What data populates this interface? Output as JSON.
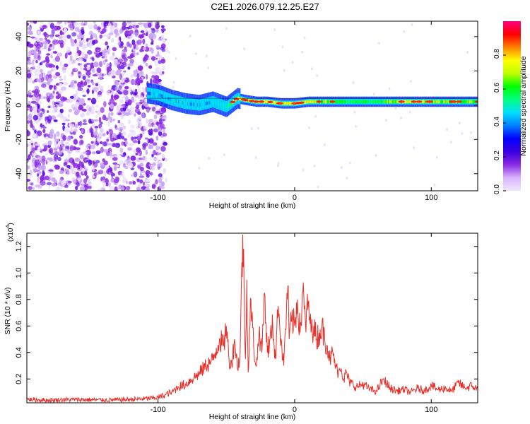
{
  "title": "C2E1.2026.079.12.25.E27",
  "chart_data": [
    {
      "type": "heatmap",
      "name": "spectrogram",
      "title": "C2E1.2026.079.12.25.E27",
      "xlabel": "Height of straight line (km)",
      "ylabel": "Frequency (Hz)",
      "xlim": [
        -196,
        134
      ],
      "ylim": [
        -50,
        49
      ],
      "xticks": [
        -100,
        0,
        100
      ],
      "xtick_labels": [
        "-100",
        "0",
        "100"
      ],
      "yticks": [
        -40,
        -20,
        0,
        20,
        40
      ],
      "ytick_labels": [
        "-40",
        "-20",
        "0",
        "20",
        "40"
      ],
      "colorbar": {
        "label": "Normalized spectral amplitude",
        "range": [
          0.0,
          1.0
        ],
        "ticks": [
          0.0,
          0.2,
          0.4,
          0.6,
          0.8
        ],
        "tick_labels": [
          "0.0",
          "0.2",
          "0.4",
          "0.6",
          "0.8"
        ],
        "colormap": [
          "#f0e6ff",
          "#d9b3ff",
          "#8a2be2",
          "#3a00e0",
          "#0000ff",
          "#0080ff",
          "#00e0ff",
          "#00ff80",
          "#00ff00",
          "#c0ff00",
          "#ffff00",
          "#ff8000",
          "#ff0000",
          "#ff0080"
        ]
      },
      "noise_region_x": [
        -196,
        -94
      ],
      "signal_track": {
        "x": [
          -108,
          -100,
          -90,
          -80,
          -70,
          -60,
          -50,
          -42,
          -36,
          -28,
          -20,
          -10,
          0,
          10,
          20,
          40,
          60,
          80,
          100,
          120,
          134
        ],
        "freq_hz": [
          7,
          6,
          3,
          1,
          0,
          2,
          -1,
          4,
          3,
          2,
          2,
          1,
          1,
          2,
          2,
          2,
          2,
          2,
          2,
          2,
          2
        ],
        "amplitude": [
          0.45,
          0.5,
          0.55,
          0.55,
          0.5,
          0.55,
          0.6,
          0.95,
          0.85,
          0.9,
          0.95,
          0.9,
          0.95,
          0.9,
          0.8,
          0.7,
          0.7,
          0.9,
          0.85,
          0.8,
          0.75
        ]
      }
    },
    {
      "type": "line",
      "name": "snr",
      "xlabel": "Height of straight line (km)",
      "ylabel": "SNR (10 * v/v)",
      "y_multiplier_label": "(x10",
      "y_multiplier_exponent": "4",
      "y_multiplier_close": ")",
      "xlim": [
        -196,
        134
      ],
      "ylim": [
        0.02,
        1.3
      ],
      "xticks": [
        -100,
        0,
        100
      ],
      "xtick_labels": [
        "-100",
        "0",
        "100"
      ],
      "yticks": [
        0.2,
        0.4,
        0.6,
        0.8,
        1.0,
        1.2
      ],
      "ytick_labels": [
        "0.2",
        "0.4",
        "0.6",
        "0.8",
        "1.0",
        "1.2"
      ],
      "color": "#e8302a",
      "series": [
        {
          "name": "SNR",
          "x": [
            -196,
            -180,
            -160,
            -140,
            -120,
            -110,
            -100,
            -95,
            -90,
            -85,
            -80,
            -75,
            -70,
            -65,
            -60,
            -58,
            -55,
            -52,
            -50,
            -48,
            -46,
            -44,
            -42,
            -40,
            -38,
            -37,
            -36,
            -35,
            -34,
            -32,
            -30,
            -28,
            -26,
            -24,
            -22,
            -20,
            -18,
            -16,
            -14,
            -12,
            -10,
            -8,
            -6,
            -5,
            -4,
            -2,
            0,
            2,
            4,
            6,
            8,
            10,
            12,
            14,
            16,
            18,
            20,
            22,
            24,
            26,
            28,
            30,
            32,
            34,
            36,
            38,
            40,
            45,
            50,
            55,
            60,
            65,
            70,
            75,
            80,
            85,
            90,
            95,
            100,
            105,
            110,
            115,
            120,
            125,
            130,
            134
          ],
          "y": [
            0.045,
            0.04,
            0.045,
            0.04,
            0.045,
            0.05,
            0.06,
            0.08,
            0.1,
            0.14,
            0.16,
            0.2,
            0.24,
            0.3,
            0.34,
            0.4,
            0.5,
            0.45,
            0.6,
            0.35,
            0.3,
            0.5,
            0.3,
            0.35,
            1.29,
            0.9,
            0.35,
            0.95,
            0.25,
            0.8,
            0.45,
            0.3,
            0.55,
            0.4,
            0.85,
            0.4,
            0.5,
            0.6,
            0.35,
            0.75,
            0.5,
            0.3,
            0.7,
            0.9,
            0.5,
            0.65,
            0.6,
            0.8,
            0.55,
            0.85,
            0.6,
            0.78,
            0.55,
            0.6,
            0.5,
            0.55,
            0.6,
            0.5,
            0.45,
            0.35,
            0.4,
            0.3,
            0.25,
            0.28,
            0.2,
            0.25,
            0.18,
            0.14,
            0.16,
            0.12,
            0.11,
            0.2,
            0.13,
            0.11,
            0.12,
            0.1,
            0.13,
            0.11,
            0.15,
            0.12,
            0.13,
            0.11,
            0.17,
            0.13,
            0.15,
            0.12
          ]
        }
      ]
    }
  ]
}
